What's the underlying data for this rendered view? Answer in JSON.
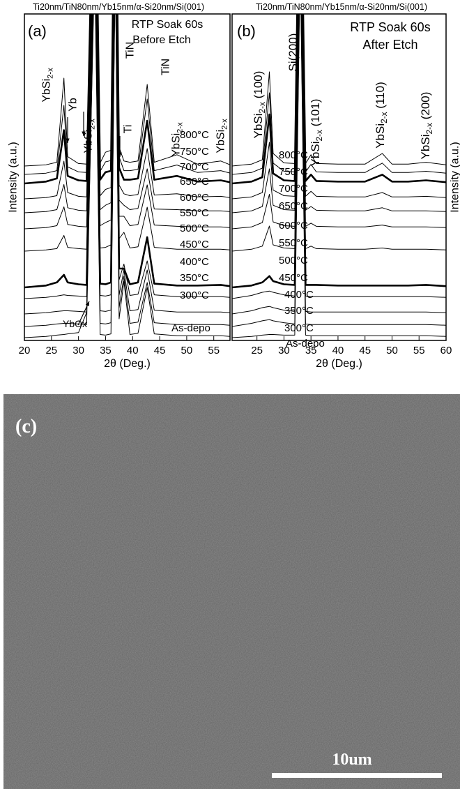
{
  "chart_data": [
    {
      "type": "line",
      "title": "Ti20nm/TiN80nm/Yb15nm/α-Si20nm/Si(001)",
      "x_label": "2θ (Deg.)",
      "y_label": "Intensity (a.u.)",
      "xlim": [
        20,
        58
      ],
      "xticks": [
        20,
        25,
        30,
        35,
        40,
        45,
        50,
        55
      ],
      "x": [
        20,
        24,
        26,
        27.3,
        28,
        30,
        31.5,
        33,
        34,
        35,
        36,
        36.8,
        37.5,
        38.4,
        39.5,
        41,
        42.7,
        44,
        48.2,
        52,
        56.3,
        58
      ],
      "annotations": [
        {
          "text": "(a)"
        },
        {
          "text": "RTP Soak 60s"
        },
        {
          "text": "Before Etch"
        },
        {
          "text": "YbSi",
          "sub": "2-x"
        },
        {
          "text": "Yb"
        },
        {
          "text": "YbSi",
          "sub": "2-x"
        },
        {
          "text": "Ti"
        },
        {
          "text": "TiN"
        },
        {
          "text": "TiN"
        },
        {
          "text": "YbSi",
          "sub": "2-x"
        },
        {
          "text": "YbSi",
          "sub": "2-x"
        },
        {
          "text": "YbOx"
        }
      ],
      "series": [
        {
          "name": "800°C",
          "color": "#000000",
          "width": 1,
          "values": [
            0,
            2,
            6,
            140,
            15,
            4,
            3,
            600,
            5,
            22,
            25,
            600,
            30,
            8,
            6,
            8,
            130,
            6,
            18,
            3,
            8,
            2
          ]
        },
        {
          "name": "750°C",
          "color": "#000000",
          "width": 1,
          "values": [
            0,
            2,
            6,
            110,
            12,
            4,
            3,
            600,
            5,
            20,
            22,
            600,
            28,
            6,
            6,
            8,
            120,
            6,
            15,
            3,
            6,
            2
          ]
        },
        {
          "name": "700°C",
          "color": "#000000",
          "width": 2.6,
          "values": [
            0,
            3,
            8,
            85,
            12,
            5,
            4,
            600,
            6,
            18,
            20,
            600,
            25,
            6,
            6,
            8,
            100,
            6,
            12,
            3,
            5,
            2
          ]
        },
        {
          "name": "650°C",
          "color": "#000000",
          "width": 1,
          "values": [
            0,
            2,
            5,
            60,
            10,
            4,
            3,
            600,
            5,
            15,
            18,
            600,
            22,
            8,
            5,
            7,
            80,
            6,
            8,
            3,
            4,
            2
          ]
        },
        {
          "name": "600°C",
          "color": "#000000",
          "width": 1,
          "values": [
            0,
            2,
            5,
            45,
            8,
            4,
            3,
            600,
            5,
            12,
            16,
            600,
            20,
            12,
            5,
            7,
            70,
            6,
            5,
            3,
            3,
            2
          ]
        },
        {
          "name": "550°C",
          "color": "#000000",
          "width": 1,
          "values": [
            0,
            2,
            5,
            35,
            7,
            4,
            3,
            600,
            5,
            10,
            14,
            600,
            20,
            20,
            5,
            7,
            70,
            6,
            4,
            3,
            3,
            2
          ]
        },
        {
          "name": "500°C",
          "color": "#000000",
          "width": 1,
          "values": [
            0,
            2,
            4,
            25,
            6,
            4,
            3,
            600,
            5,
            6,
            10,
            600,
            20,
            30,
            5,
            7,
            70,
            6,
            3,
            3,
            3,
            2
          ]
        },
        {
          "name": "450°C",
          "color": "#000000",
          "width": 2.6,
          "values": [
            0,
            3,
            8,
            20,
            8,
            5,
            4,
            600,
            6,
            5,
            8,
            600,
            30,
            30,
            5,
            8,
            80,
            6,
            3,
            3,
            4,
            2
          ]
        },
        {
          "name": "400°C",
          "color": "#000000",
          "width": 1,
          "values": [
            0,
            2,
            4,
            6,
            5,
            4,
            3,
            600,
            5,
            4,
            6,
            600,
            30,
            55,
            5,
            7,
            60,
            6,
            3,
            3,
            3,
            2
          ]
        },
        {
          "name": "350°C",
          "color": "#000000",
          "width": 1,
          "values": [
            0,
            2,
            4,
            5,
            5,
            4,
            3,
            600,
            5,
            4,
            6,
            600,
            30,
            70,
            5,
            7,
            70,
            6,
            3,
            3,
            3,
            2
          ]
        },
        {
          "name": "300°C",
          "color": "#000000",
          "width": 1,
          "values": [
            0,
            2,
            4,
            5,
            5,
            4,
            3,
            600,
            5,
            4,
            6,
            600,
            30,
            80,
            5,
            7,
            70,
            6,
            3,
            3,
            3,
            2
          ]
        },
        {
          "name": "As-depo",
          "color": "#000000",
          "width": 1,
          "values": [
            0,
            2,
            4,
            5,
            6,
            8,
            40,
            600,
            5,
            4,
            6,
            600,
            30,
            90,
            5,
            7,
            80,
            6,
            3,
            3,
            3,
            2
          ]
        }
      ]
    },
    {
      "type": "line",
      "title": "Ti20nm/TiN80nm/Yb15nm/α-Si20nm/Si(001)",
      "x_label": "2θ (Deg.)",
      "y_label": "Intensity (a.u.)",
      "xlim": [
        20.4,
        60
      ],
      "xticks": [
        25,
        30,
        35,
        40,
        45,
        50,
        55,
        60
      ],
      "x": [
        20.4,
        24,
        26,
        27.3,
        28,
        30,
        32,
        33,
        34,
        35,
        36,
        40,
        45,
        48.2,
        50,
        53,
        56.3,
        60
      ],
      "annotations": [
        {
          "text": "(b)"
        },
        {
          "text": "RTP Soak 60s"
        },
        {
          "text": "After Etch"
        },
        {
          "text": "YbSi",
          "sub": "2-x",
          "after": " (100)"
        },
        {
          "text": "Si(200)"
        },
        {
          "text": "YbSi",
          "sub": "2-x",
          "after": " (101)"
        },
        {
          "text": "YbSi",
          "sub": "2-x",
          "after": " (110)"
        },
        {
          "text": "YbSi",
          "sub": "2-x",
          "after": " (200)"
        }
      ],
      "series": [
        {
          "name": "800°C",
          "color": "#000000",
          "width": 1,
          "values": [
            0,
            3,
            10,
            150,
            20,
            5,
            4,
            600,
            4,
            18,
            4,
            3,
            3,
            20,
            3,
            3,
            6,
            2
          ]
        },
        {
          "name": "750°C",
          "color": "#000000",
          "width": 1,
          "values": [
            0,
            3,
            10,
            130,
            18,
            5,
            4,
            600,
            4,
            16,
            4,
            3,
            3,
            18,
            3,
            3,
            5,
            2
          ]
        },
        {
          "name": "700°C",
          "color": "#000000",
          "width": 2.6,
          "values": [
            0,
            3,
            10,
            110,
            16,
            5,
            4,
            600,
            4,
            14,
            4,
            3,
            3,
            14,
            3,
            3,
            5,
            2
          ]
        },
        {
          "name": "650°C",
          "color": "#000000",
          "width": 1,
          "values": [
            0,
            3,
            10,
            90,
            14,
            5,
            4,
            600,
            4,
            12,
            4,
            3,
            3,
            10,
            3,
            3,
            4,
            2
          ]
        },
        {
          "name": "600°C",
          "color": "#000000",
          "width": 1,
          "values": [
            0,
            3,
            10,
            70,
            12,
            5,
            4,
            600,
            4,
            10,
            4,
            3,
            3,
            8,
            3,
            3,
            3,
            2
          ]
        },
        {
          "name": "550°C",
          "color": "#000000",
          "width": 1,
          "values": [
            0,
            3,
            10,
            55,
            11,
            5,
            4,
            600,
            4,
            9,
            4,
            3,
            3,
            6,
            3,
            3,
            3,
            2
          ]
        },
        {
          "name": "500°C",
          "color": "#000000",
          "width": 1,
          "values": [
            0,
            3,
            8,
            40,
            10,
            5,
            4,
            600,
            4,
            8,
            4,
            3,
            3,
            5,
            3,
            3,
            3,
            2
          ]
        },
        {
          "name": "450°C",
          "color": "#000000",
          "width": 2.6,
          "values": [
            0,
            3,
            8,
            18,
            10,
            5,
            4,
            600,
            4,
            4,
            4,
            3,
            3,
            3,
            3,
            3,
            4,
            2
          ]
        },
        {
          "name": "400°C",
          "color": "#000000",
          "width": 1,
          "values": [
            0,
            5,
            10,
            12,
            10,
            6,
            4,
            600,
            4,
            3,
            3,
            3,
            3,
            3,
            3,
            3,
            3,
            2
          ]
        },
        {
          "name": "350°C",
          "color": "#000000",
          "width": 1,
          "values": [
            0,
            5,
            10,
            12,
            10,
            6,
            4,
            600,
            4,
            3,
            3,
            3,
            3,
            3,
            3,
            3,
            3,
            2
          ]
        },
        {
          "name": "300°C",
          "color": "#000000",
          "width": 1,
          "values": [
            0,
            5,
            9,
            11,
            9,
            6,
            4,
            600,
            4,
            3,
            3,
            3,
            3,
            3,
            3,
            3,
            3,
            2
          ]
        },
        {
          "name": "As-depo",
          "color": "#000000",
          "width": 1,
          "values": [
            0,
            2,
            4,
            5,
            5,
            4,
            4,
            600,
            4,
            3,
            3,
            3,
            3,
            3,
            3,
            3,
            3,
            2
          ]
        }
      ]
    }
  ],
  "image_panel": {
    "label": "(c)",
    "scale_bar": "10um"
  }
}
